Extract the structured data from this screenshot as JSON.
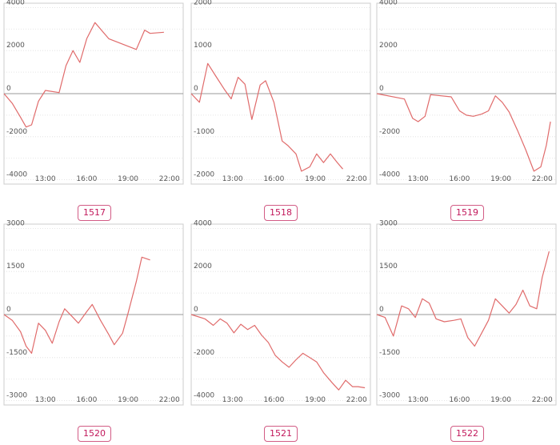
{
  "chart_data": [
    {
      "type": "line",
      "label": "1517",
      "ylim": [
        -4200,
        4200
      ],
      "yticks": [
        4000,
        2000,
        0,
        -2000,
        -4000
      ],
      "x_ticks": [
        "13:00",
        "16:00",
        "19:00",
        "22:00"
      ],
      "x_range": [
        10,
        23
      ],
      "gridlines_step": 1000,
      "series": [
        {
          "values": [
            [
              10,
              0
            ],
            [
              10.6,
              -450
            ],
            [
              11.2,
              -1100
            ],
            [
              11.6,
              -1550
            ],
            [
              12,
              -1450
            ],
            [
              12.5,
              -350
            ],
            [
              13,
              150
            ],
            [
              14,
              50
            ],
            [
              14.5,
              1300
            ],
            [
              15,
              2000
            ],
            [
              15.5,
              1450
            ],
            [
              16,
              2550
            ],
            [
              16.6,
              3300
            ],
            [
              17.6,
              2550
            ],
            [
              19.6,
              2050
            ],
            [
              20.2,
              2950
            ],
            [
              20.6,
              2800
            ],
            [
              21.6,
              2850
            ]
          ]
        }
      ]
    },
    {
      "type": "line",
      "label": "1518",
      "ylim": [
        -2100,
        2100
      ],
      "yticks": [
        2000,
        1000,
        0,
        -1000,
        -2000
      ],
      "x_ticks": [
        "13:00",
        "16:00",
        "19:00",
        "22:00"
      ],
      "x_range": [
        10,
        23
      ],
      "gridlines_step": 500,
      "series": [
        {
          "values": [
            [
              10,
              0
            ],
            [
              10.6,
              -200
            ],
            [
              11.2,
              700
            ],
            [
              11.8,
              400
            ],
            [
              12.4,
              100
            ],
            [
              12.9,
              -120
            ],
            [
              13.4,
              380
            ],
            [
              13.9,
              220
            ],
            [
              14.4,
              -600
            ],
            [
              15,
              200
            ],
            [
              15.4,
              300
            ],
            [
              16,
              -200
            ],
            [
              16.6,
              -1100
            ],
            [
              17,
              -1200
            ],
            [
              17.6,
              -1400
            ],
            [
              18,
              -1800
            ],
            [
              18.6,
              -1700
            ],
            [
              19.1,
              -1400
            ],
            [
              19.6,
              -1600
            ],
            [
              20.1,
              -1400
            ],
            [
              20.6,
              -1600
            ],
            [
              21,
              -1750
            ]
          ]
        }
      ]
    },
    {
      "type": "line",
      "label": "1519",
      "ylim": [
        -4200,
        4200
      ],
      "yticks": [
        4000,
        2000,
        0,
        -2000,
        -4000
      ],
      "x_ticks": [
        "13:00",
        "16:00",
        "19:00",
        "22:00"
      ],
      "x_range": [
        10,
        23
      ],
      "gridlines_step": 1000,
      "series": [
        {
          "values": [
            [
              10,
              0
            ],
            [
              12,
              -250
            ],
            [
              12.6,
              -1150
            ],
            [
              13,
              -1300
            ],
            [
              13.5,
              -1050
            ],
            [
              13.9,
              -50
            ],
            [
              15.4,
              -150
            ],
            [
              16,
              -800
            ],
            [
              16.5,
              -1000
            ],
            [
              17,
              -1050
            ],
            [
              17.6,
              -950
            ],
            [
              18.1,
              -800
            ],
            [
              18.6,
              -100
            ],
            [
              19.1,
              -400
            ],
            [
              19.6,
              -850
            ],
            [
              20.2,
              -1700
            ],
            [
              20.8,
              -2600
            ],
            [
              21.4,
              -3600
            ],
            [
              21.9,
              -3400
            ],
            [
              22.3,
              -2400
            ],
            [
              22.6,
              -1300
            ]
          ]
        }
      ]
    },
    {
      "type": "line",
      "label": "1520",
      "ylim": [
        -3150,
        3150
      ],
      "yticks": [
        3000,
        1500,
        0,
        -1500,
        -3000
      ],
      "x_ticks": [
        "13:00",
        "16:00",
        "19:00",
        "22:00"
      ],
      "x_range": [
        10,
        23
      ],
      "gridlines_step": 750,
      "series": [
        {
          "values": [
            [
              10,
              0
            ],
            [
              10.6,
              -200
            ],
            [
              11.2,
              -600
            ],
            [
              11.6,
              -1100
            ],
            [
              12,
              -1350
            ],
            [
              12.5,
              -300
            ],
            [
              13,
              -550
            ],
            [
              13.5,
              -1000
            ],
            [
              14,
              -250
            ],
            [
              14.4,
              200
            ],
            [
              15,
              -100
            ],
            [
              15.4,
              -300
            ],
            [
              16,
              100
            ],
            [
              16.4,
              350
            ],
            [
              17,
              -200
            ],
            [
              17.6,
              -700
            ],
            [
              18,
              -1050
            ],
            [
              18.6,
              -650
            ],
            [
              19,
              50
            ],
            [
              19.6,
              1150
            ],
            [
              20,
              2000
            ],
            [
              20.6,
              1900
            ]
          ]
        }
      ]
    },
    {
      "type": "line",
      "label": "1521",
      "ylim": [
        -4200,
        4200
      ],
      "yticks": [
        4000,
        2000,
        0,
        -2000,
        -4000
      ],
      "x_ticks": [
        "13:00",
        "16:00",
        "19:00",
        "22:00"
      ],
      "x_range": [
        10,
        23
      ],
      "gridlines_step": 1000,
      "series": [
        {
          "values": [
            [
              10,
              0
            ],
            [
              11,
              -200
            ],
            [
              11.6,
              -500
            ],
            [
              12.1,
              -200
            ],
            [
              12.6,
              -400
            ],
            [
              13.1,
              -850
            ],
            [
              13.6,
              -450
            ],
            [
              14.1,
              -700
            ],
            [
              14.6,
              -500
            ],
            [
              15.1,
              -950
            ],
            [
              15.6,
              -1300
            ],
            [
              16.1,
              -1900
            ],
            [
              16.6,
              -2200
            ],
            [
              17.1,
              -2450
            ],
            [
              17.6,
              -2100
            ],
            [
              18.1,
              -1800
            ],
            [
              18.6,
              -2000
            ],
            [
              19.1,
              -2200
            ],
            [
              19.6,
              -2700
            ],
            [
              20.2,
              -3150
            ],
            [
              20.7,
              -3500
            ],
            [
              21.2,
              -3050
            ],
            [
              21.7,
              -3350
            ],
            [
              22.1,
              -3350
            ],
            [
              22.6,
              -3400
            ]
          ]
        }
      ]
    },
    {
      "type": "line",
      "label": "1522",
      "ylim": [
        -3150,
        3150
      ],
      "yticks": [
        3000,
        1500,
        0,
        -1500,
        -3000
      ],
      "x_ticks": [
        "13:00",
        "16:00",
        "19:00",
        "22:00"
      ],
      "x_range": [
        10,
        23
      ],
      "gridlines_step": 750,
      "series": [
        {
          "values": [
            [
              10,
              0
            ],
            [
              10.6,
              -100
            ],
            [
              11.2,
              -750
            ],
            [
              11.8,
              300
            ],
            [
              12.3,
              200
            ],
            [
              12.8,
              -100
            ],
            [
              13.3,
              550
            ],
            [
              13.8,
              400
            ],
            [
              14.3,
              -150
            ],
            [
              14.9,
              -250
            ],
            [
              15.6,
              -200
            ],
            [
              16.1,
              -150
            ],
            [
              16.6,
              -800
            ],
            [
              17.1,
              -1100
            ],
            [
              17.6,
              -650
            ],
            [
              18.1,
              -200
            ],
            [
              18.6,
              550
            ],
            [
              19.1,
              300
            ],
            [
              19.6,
              50
            ],
            [
              20.1,
              350
            ],
            [
              20.6,
              850
            ],
            [
              21.1,
              300
            ],
            [
              21.6,
              200
            ],
            [
              22,
              1300
            ],
            [
              22.5,
              2200
            ]
          ]
        }
      ]
    }
  ]
}
